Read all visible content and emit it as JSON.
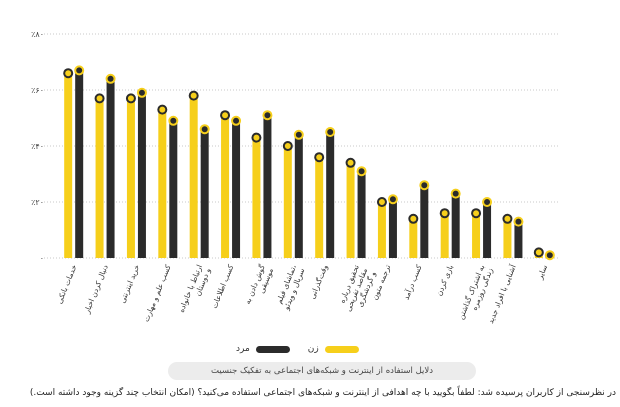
{
  "colors": {
    "female": "#F6CF1B",
    "male": "#2B2B2B",
    "grid": "#c8c8c8"
  },
  "legend": {
    "female_label": "زن",
    "male_label": "مرد"
  },
  "caption": "دلایل استفاده از اینترنت و شبکه‌های اجتماعی به تفکیک جنسیت",
  "question": "در نظرسنجی از کاربران پرسیده شد: لطفاً بگویید با چه اهدافی از اینترنت و شبکه‌های اجتماعی استفاده می‌کنید؟ (امکان انتخاب چند گزینه وجود داشته است.)",
  "chart_data": {
    "type": "bar",
    "ylim": [
      0,
      80
    ],
    "yticks": [
      0,
      20,
      40,
      60,
      80
    ],
    "ytick_labels": [
      "۰",
      "٪۲۰",
      "٪۴۰",
      "٪۶۰",
      "٪۸۰"
    ],
    "grid": true,
    "legend_position": "bottom",
    "categories": [
      [
        "خدمات بانکی"
      ],
      [
        "دنبال کردن اخبار"
      ],
      [
        "خرید اینترنتی"
      ],
      [
        "کسب علم و مهارت"
      ],
      [
        "ارتباط با خانواده",
        "و دوستان"
      ],
      [
        "کسب اطلاعات"
      ],
      [
        "گوش دادن به",
        "موسیقی"
      ],
      [
        "تماشای فیلم،",
        "سریال و ویدئو"
      ],
      [
        "وقت‌گذرانی"
      ],
      [
        "تحقیق درباره",
        "مقاصد تفریحی",
        "و گردشگری"
      ],
      [
        "ترجمه متون"
      ],
      [
        "کسب درآمد"
      ],
      [
        "بازی کردن"
      ],
      [
        "به اشتراک گذاشتن",
        "زندگی روزمره"
      ],
      [
        "آشنایی با افراد جدید"
      ],
      [
        "سایر"
      ]
    ],
    "series": [
      {
        "name": "زن",
        "values": [
          66,
          57,
          57,
          53,
          58,
          51,
          43,
          40,
          36,
          34,
          20,
          14,
          16,
          16,
          14,
          2
        ]
      },
      {
        "name": "مرد",
        "values": [
          67,
          64,
          59,
          49,
          46,
          49,
          51,
          44,
          45,
          31,
          21,
          26,
          23,
          20,
          13,
          1
        ]
      }
    ]
  }
}
